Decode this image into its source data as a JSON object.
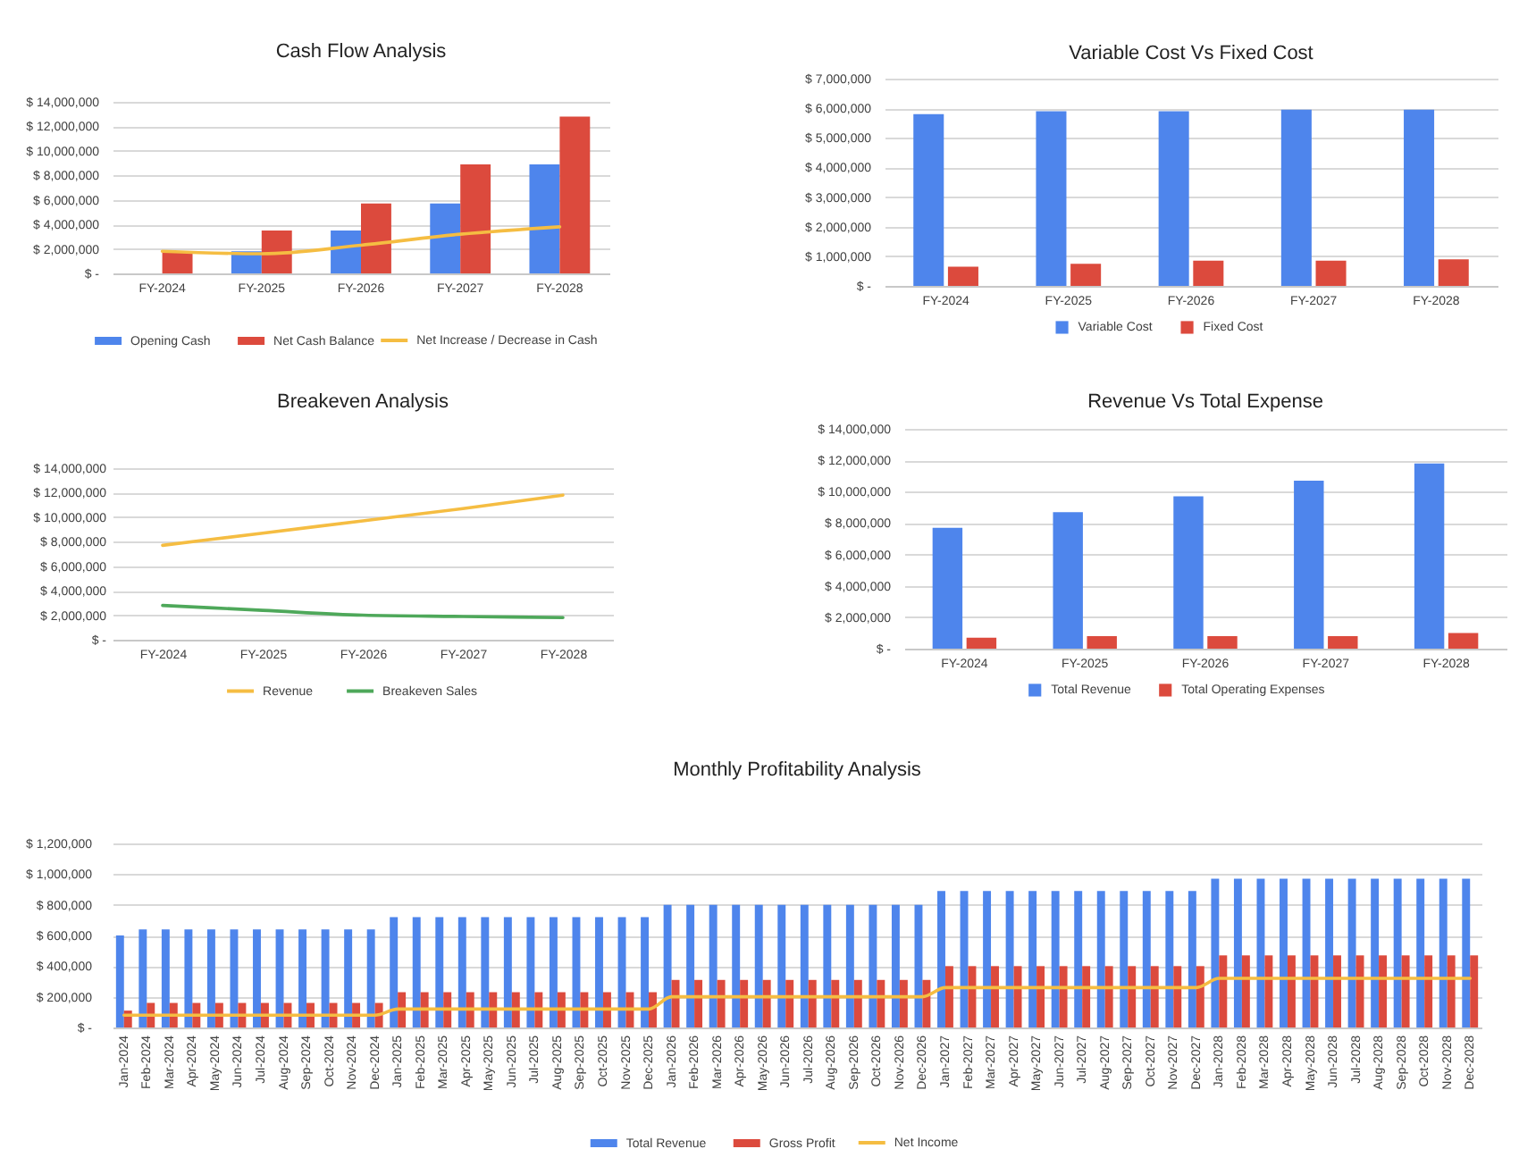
{
  "chart_data": [
    {
      "type": "bar",
      "title": "Cash Flow Analysis",
      "categories": [
        "FY-2024",
        "FY-2025",
        "FY-2026",
        "FY-2027",
        "FY-2028"
      ],
      "series": [
        {
          "name": "Opening Cash",
          "color": "#4e85ec",
          "values": [
            0,
            1800000,
            3500000,
            5700000,
            8900000
          ]
        },
        {
          "name": "Net Cash Balance",
          "color": "#dc4a3d",
          "values": [
            1800000,
            3500000,
            5700000,
            8900000,
            12800000
          ]
        },
        {
          "name": "Net Increase / Decrease in Cash",
          "type": "line",
          "color": "#f5bd42",
          "values": [
            1800000,
            1600000,
            2300000,
            3200000,
            3800000
          ]
        }
      ],
      "ylim": [
        0,
        14000000
      ],
      "yticks": [
        {
          "value": 0,
          "label": "$ -"
        },
        {
          "value": 2000000,
          "label": "$ 2,000,000"
        },
        {
          "value": 4000000,
          "label": "$ 4,000,000"
        },
        {
          "value": 6000000,
          "label": "$ 6,000,000"
        },
        {
          "value": 8000000,
          "label": "$ 8,000,000"
        },
        {
          "value": 10000000,
          "label": "$ 10,000,000"
        },
        {
          "value": 12000000,
          "label": "$ 12,000,000"
        },
        {
          "value": 14000000,
          "label": "$ 14,000,000"
        }
      ],
      "grid": "y",
      "legend": "bottom"
    },
    {
      "type": "bar",
      "title": "Variable Cost Vs Fixed Cost",
      "categories": [
        "FY-2024",
        "FY-2025",
        "FY-2026",
        "FY-2027",
        "FY-2028"
      ],
      "series": [
        {
          "name": "Variable Cost",
          "color": "#4e85ec",
          "values": [
            5800000,
            5900000,
            5900000,
            5950000,
            5950000
          ]
        },
        {
          "name": "Fixed Cost",
          "color": "#dc4a3d",
          "values": [
            650000,
            750000,
            850000,
            850000,
            900000
          ]
        }
      ],
      "ylim": [
        0,
        7000000
      ],
      "yticks": [
        {
          "value": 0,
          "label": "$ -"
        },
        {
          "value": 1000000,
          "label": "$ 1,000,000"
        },
        {
          "value": 2000000,
          "label": "$ 2,000,000"
        },
        {
          "value": 3000000,
          "label": "$ 3,000,000"
        },
        {
          "value": 4000000,
          "label": "$ 4,000,000"
        },
        {
          "value": 5000000,
          "label": "$ 5,000,000"
        },
        {
          "value": 6000000,
          "label": "$ 6,000,000"
        },
        {
          "value": 7000000,
          "label": "$ 7,000,000"
        }
      ],
      "grid": "y",
      "legend": "bottom"
    },
    {
      "type": "line",
      "title": "Breakeven Analysis",
      "categories": [
        "FY-2024",
        "FY-2025",
        "FY-2026",
        "FY-2027",
        "FY-2028"
      ],
      "series": [
        {
          "name": "Revenue",
          "color": "#f5bd42",
          "values": [
            7700000,
            8700000,
            9700000,
            10700000,
            11800000
          ]
        },
        {
          "name": "Breakeven Sales",
          "color": "#4ea85a",
          "values": [
            2800000,
            2400000,
            2000000,
            1900000,
            1800000
          ]
        }
      ],
      "ylim": [
        0,
        14000000
      ],
      "yticks": [
        {
          "value": 0,
          "label": "$ -"
        },
        {
          "value": 2000000,
          "label": "$ 2,000,000"
        },
        {
          "value": 4000000,
          "label": "$ 4,000,000"
        },
        {
          "value": 6000000,
          "label": "$ 6,000,000"
        },
        {
          "value": 8000000,
          "label": "$ 8,000,000"
        },
        {
          "value": 10000000,
          "label": "$ 10,000,000"
        },
        {
          "value": 12000000,
          "label": "$ 12,000,000"
        },
        {
          "value": 14000000,
          "label": "$ 14,000,000"
        }
      ],
      "grid": "y",
      "legend": "bottom"
    },
    {
      "type": "bar",
      "title": "Revenue Vs Total Expense",
      "categories": [
        "FY-2024",
        "FY-2025",
        "FY-2026",
        "FY-2027",
        "FY-2028"
      ],
      "series": [
        {
          "name": "Total Revenue",
          "color": "#4e85ec",
          "values": [
            7700000,
            8700000,
            9700000,
            10700000,
            11800000
          ]
        },
        {
          "name": "Total Operating Expenses",
          "color": "#dc4a3d",
          "values": [
            700000,
            800000,
            800000,
            800000,
            1000000
          ]
        }
      ],
      "ylim": [
        0,
        14000000
      ],
      "yticks": [
        {
          "value": 0,
          "label": "$ -"
        },
        {
          "value": 2000000,
          "label": "$ 2,000,000"
        },
        {
          "value": 4000000,
          "label": "$ 4,000,000"
        },
        {
          "value": 6000000,
          "label": "$ 6,000,000"
        },
        {
          "value": 8000000,
          "label": "$ 8,000,000"
        },
        {
          "value": 10000000,
          "label": "$ 10,000,000"
        },
        {
          "value": 12000000,
          "label": "$ 12,000,000"
        },
        {
          "value": 14000000,
          "label": "$ 14,000,000"
        }
      ],
      "grid": "y",
      "legend": "bottom"
    },
    {
      "type": "bar",
      "title": "Monthly Profitability Analysis",
      "categories": [
        "Jan-2024",
        "Feb-2024",
        "Mar-2024",
        "Apr-2024",
        "May-2024",
        "Jun-2024",
        "Jul-2024",
        "Aug-2024",
        "Sep-2024",
        "Oct-2024",
        "Nov-2024",
        "Dec-2024",
        "Jan-2025",
        "Feb-2025",
        "Mar-2025",
        "Apr-2025",
        "May-2025",
        "Jun-2025",
        "Jul-2025",
        "Aug-2025",
        "Sep-2025",
        "Oct-2025",
        "Nov-2025",
        "Dec-2025",
        "Jan-2026",
        "Feb-2026",
        "Mar-2026",
        "Apr-2026",
        "May-2026",
        "Jun-2026",
        "Jul-2026",
        "Aug-2026",
        "Sep-2026",
        "Oct-2026",
        "Nov-2026",
        "Dec-2026",
        "Jan-2027",
        "Feb-2027",
        "Mar-2027",
        "Apr-2027",
        "May-2027",
        "Jun-2027",
        "Jul-2027",
        "Aug-2027",
        "Sep-2027",
        "Oct-2027",
        "Nov-2027",
        "Dec-2027",
        "Jan-2028",
        "Feb-2028",
        "Mar-2028",
        "Apr-2028",
        "May-2028",
        "Jun-2028",
        "Jul-2028",
        "Aug-2028",
        "Sep-2028",
        "Oct-2028",
        "Nov-2028",
        "Dec-2028"
      ],
      "series": [
        {
          "name": "Total Revenue",
          "color": "#4e85ec",
          "values": [
            600000,
            640000,
            640000,
            640000,
            640000,
            640000,
            640000,
            640000,
            640000,
            640000,
            640000,
            640000,
            720000,
            720000,
            720000,
            720000,
            720000,
            720000,
            720000,
            720000,
            720000,
            720000,
            720000,
            720000,
            800000,
            800000,
            800000,
            800000,
            800000,
            800000,
            800000,
            800000,
            800000,
            800000,
            800000,
            800000,
            890000,
            890000,
            890000,
            890000,
            890000,
            890000,
            890000,
            890000,
            890000,
            890000,
            890000,
            890000,
            970000,
            970000,
            970000,
            970000,
            970000,
            970000,
            970000,
            970000,
            970000,
            970000,
            970000,
            970000
          ]
        },
        {
          "name": "Gross Profit",
          "color": "#dc4a3d",
          "values": [
            110000,
            160000,
            160000,
            160000,
            160000,
            160000,
            160000,
            160000,
            160000,
            160000,
            160000,
            160000,
            230000,
            230000,
            230000,
            230000,
            230000,
            230000,
            230000,
            230000,
            230000,
            230000,
            230000,
            230000,
            310000,
            310000,
            310000,
            310000,
            310000,
            310000,
            310000,
            310000,
            310000,
            310000,
            310000,
            310000,
            400000,
            400000,
            400000,
            400000,
            400000,
            400000,
            400000,
            400000,
            400000,
            400000,
            400000,
            400000,
            470000,
            470000,
            470000,
            470000,
            470000,
            470000,
            470000,
            470000,
            470000,
            470000,
            470000,
            470000
          ]
        },
        {
          "name": "Net Income",
          "type": "line",
          "color": "#f5bd42",
          "values": [
            80000,
            80000,
            80000,
            80000,
            80000,
            80000,
            80000,
            80000,
            80000,
            80000,
            80000,
            80000,
            120000,
            120000,
            120000,
            120000,
            120000,
            120000,
            120000,
            120000,
            120000,
            120000,
            120000,
            120000,
            200000,
            200000,
            200000,
            200000,
            200000,
            200000,
            200000,
            200000,
            200000,
            200000,
            200000,
            200000,
            260000,
            260000,
            260000,
            260000,
            260000,
            260000,
            260000,
            260000,
            260000,
            260000,
            260000,
            260000,
            320000,
            320000,
            320000,
            320000,
            320000,
            320000,
            320000,
            320000,
            320000,
            320000,
            320000,
            320000
          ]
        }
      ],
      "ylim": [
        0,
        1200000
      ],
      "yticks": [
        {
          "value": 0,
          "label": "$ -"
        },
        {
          "value": 200000,
          "label": "$ 200,000"
        },
        {
          "value": 400000,
          "label": "$ 400,000"
        },
        {
          "value": 600000,
          "label": "$ 600,000"
        },
        {
          "value": 800000,
          "label": "$ 800,000"
        },
        {
          "value": 1000000,
          "label": "$ 1,000,000"
        },
        {
          "value": 1200000,
          "label": "$ 1,200,000"
        }
      ],
      "grid": "y",
      "legend": "bottom"
    }
  ]
}
